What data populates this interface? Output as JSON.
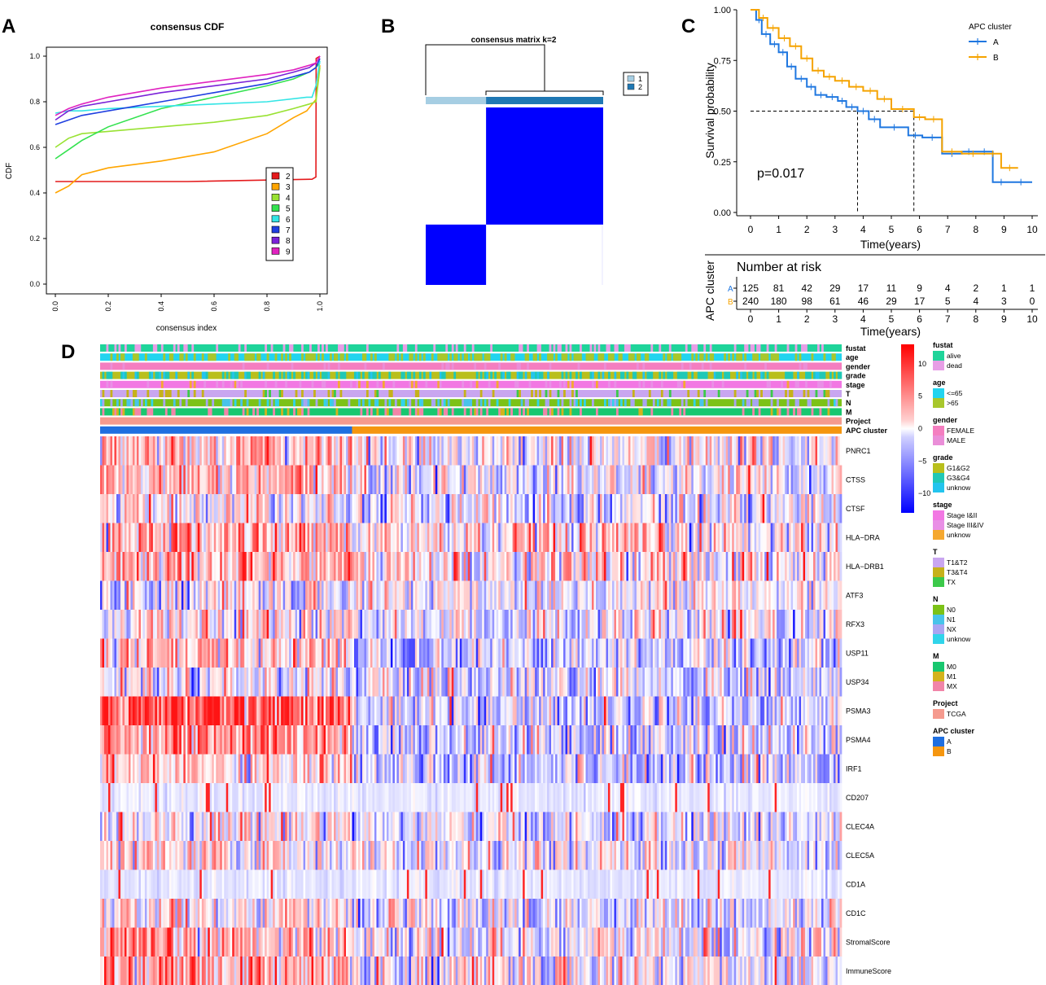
{
  "panel_labels": [
    "A",
    "B",
    "C",
    "D"
  ],
  "colors": {
    "cdf": [
      "#e41a1c",
      "#ffa500",
      "#99e233",
      "#33e24f",
      "#33e5e5",
      "#1f3fe0",
      "#7a22d8",
      "#e022c0"
    ],
    "cluster_light": "#a6cee3",
    "cluster_dark": "#1f78b4",
    "consensus_fill": "#0000ff",
    "km_A": "#1f77e0",
    "km_B": "#f5a300",
    "heat_high": "#ff0000",
    "heat_low": "#0000ff",
    "heat_mid": "#ffffff"
  },
  "chart_data": [
    {
      "id": "A",
      "type": "line",
      "title": "consensus CDF",
      "xlabel": "consensus index",
      "ylabel": "CDF",
      "xlim": [
        0,
        1
      ],
      "ylim": [
        0,
        1
      ],
      "xticks": [
        "0.0",
        "0.2",
        "0.4",
        "0.6",
        "0.8",
        "1.0"
      ],
      "yticks": [
        "0.0",
        "0.2",
        "0.4",
        "0.6",
        "0.8",
        "1.0"
      ],
      "legend": [
        "2",
        "3",
        "4",
        "5",
        "6",
        "7",
        "8",
        "9"
      ],
      "series": [
        {
          "name": "2",
          "x": [
            0.0,
            0.1,
            0.5,
            0.97,
            0.985,
            0.986,
            1.0
          ],
          "y": [
            0.45,
            0.45,
            0.45,
            0.46,
            0.47,
            0.99,
            1.0
          ]
        },
        {
          "name": "3",
          "x": [
            0.0,
            0.05,
            0.1,
            0.2,
            0.4,
            0.6,
            0.8,
            0.9,
            0.95,
            0.985,
            1.0
          ],
          "y": [
            0.4,
            0.43,
            0.48,
            0.51,
            0.54,
            0.58,
            0.66,
            0.73,
            0.76,
            0.81,
            0.96
          ]
        },
        {
          "name": "4",
          "x": [
            0.0,
            0.05,
            0.1,
            0.2,
            0.4,
            0.6,
            0.8,
            0.9,
            0.96,
            0.985,
            1.0
          ],
          "y": [
            0.6,
            0.64,
            0.66,
            0.67,
            0.69,
            0.71,
            0.74,
            0.77,
            0.79,
            0.8,
            0.95
          ]
        },
        {
          "name": "5",
          "x": [
            0.0,
            0.05,
            0.1,
            0.2,
            0.4,
            0.6,
            0.8,
            0.9,
            0.96,
            0.985,
            1.0
          ],
          "y": [
            0.55,
            0.59,
            0.63,
            0.69,
            0.77,
            0.82,
            0.87,
            0.9,
            0.93,
            0.95,
            0.97
          ]
        },
        {
          "name": "6",
          "x": [
            0.0,
            0.05,
            0.1,
            0.2,
            0.4,
            0.6,
            0.8,
            0.95,
            0.97,
            0.985,
            1.0
          ],
          "y": [
            0.75,
            0.76,
            0.76,
            0.77,
            0.78,
            0.79,
            0.8,
            0.82,
            0.82,
            0.87,
            0.98
          ]
        },
        {
          "name": "7",
          "x": [
            0.0,
            0.05,
            0.1,
            0.2,
            0.4,
            0.6,
            0.8,
            0.9,
            0.96,
            0.985,
            1.0
          ],
          "y": [
            0.7,
            0.72,
            0.74,
            0.76,
            0.8,
            0.84,
            0.88,
            0.91,
            0.93,
            0.95,
            0.99
          ]
        },
        {
          "name": "8",
          "x": [
            0.0,
            0.05,
            0.1,
            0.2,
            0.4,
            0.6,
            0.8,
            0.9,
            0.96,
            0.985,
            1.0
          ],
          "y": [
            0.72,
            0.76,
            0.78,
            0.8,
            0.84,
            0.87,
            0.9,
            0.93,
            0.95,
            0.97,
            1.0
          ]
        },
        {
          "name": "9",
          "x": [
            0.0,
            0.05,
            0.1,
            0.2,
            0.4,
            0.6,
            0.8,
            0.9,
            0.96,
            0.985,
            1.0
          ],
          "y": [
            0.74,
            0.77,
            0.79,
            0.82,
            0.86,
            0.89,
            0.92,
            0.94,
            0.96,
            0.97,
            1.0
          ]
        }
      ]
    },
    {
      "id": "B",
      "type": "heatmap",
      "title": "consensus matrix k=2",
      "legend": [
        "1",
        "2"
      ],
      "clusters": [
        {
          "name": "1",
          "fraction": 0.34
        },
        {
          "name": "2",
          "fraction": 0.66
        }
      ]
    },
    {
      "id": "C",
      "type": "line",
      "subtype": "kaplan-meier",
      "xlabel": "Time(years)",
      "ylabel": "Survival probability",
      "xlim": [
        0,
        10
      ],
      "ylim": [
        0,
        1
      ],
      "xticks": [
        "0",
        "1",
        "2",
        "3",
        "4",
        "5",
        "6",
        "7",
        "8",
        "9",
        "10"
      ],
      "yticks": [
        "0.00",
        "0.25",
        "0.50",
        "0.75",
        "1.00"
      ],
      "legend_title": "APC cluster",
      "pvalue": "p=0.017",
      "median_survival": {
        "A": 3.8,
        "B": 5.8
      },
      "series": [
        {
          "name": "A",
          "x": [
            0,
            0.2,
            0.4,
            0.7,
            1.0,
            1.3,
            1.6,
            2.0,
            2.3,
            2.7,
            3.1,
            3.4,
            3.8,
            4.2,
            4.6,
            5.6,
            6.1,
            6.8,
            7.5,
            8.0,
            8.6,
            9.2,
            10.0
          ],
          "y": [
            1.0,
            0.95,
            0.88,
            0.83,
            0.79,
            0.72,
            0.66,
            0.62,
            0.58,
            0.57,
            0.55,
            0.52,
            0.5,
            0.46,
            0.42,
            0.38,
            0.37,
            0.29,
            0.3,
            0.3,
            0.15,
            0.15,
            0.15
          ]
        },
        {
          "name": "B",
          "x": [
            0,
            0.3,
            0.6,
            1.0,
            1.4,
            1.8,
            2.2,
            2.6,
            3.0,
            3.5,
            4.0,
            4.5,
            5.0,
            5.8,
            6.2,
            6.8,
            7.5,
            8.3,
            8.9,
            9.5
          ],
          "y": [
            1.0,
            0.96,
            0.91,
            0.86,
            0.82,
            0.76,
            0.7,
            0.67,
            0.65,
            0.62,
            0.6,
            0.56,
            0.51,
            0.47,
            0.46,
            0.3,
            0.29,
            0.29,
            0.22,
            0.22
          ]
        }
      ],
      "risk_table": {
        "title": "Number at risk",
        "ylabel": "APC cluster",
        "xlabel": "Time(years)",
        "times": [
          "0",
          "1",
          "2",
          "3",
          "4",
          "5",
          "6",
          "7",
          "8",
          "9",
          "10"
        ],
        "rows": [
          {
            "group": "A",
            "counts": [
              "125",
              "81",
              "42",
              "29",
              "17",
              "11",
              "9",
              "4",
              "2",
              "1",
              "1"
            ]
          },
          {
            "group": "B",
            "counts": [
              "240",
              "180",
              "98",
              "61",
              "46",
              "29",
              "17",
              "5",
              "4",
              "3",
              "0"
            ]
          }
        ]
      }
    },
    {
      "id": "D",
      "type": "heatmap",
      "colorbar_ticks": [
        "10",
        "5",
        "0",
        "−5",
        "−10"
      ],
      "colorbar_range": [
        -13,
        13
      ],
      "cluster_split": 0.34,
      "n_samples": 365,
      "annotation_rows": [
        "fustat",
        "age",
        "gender",
        "grade",
        "stage",
        "T",
        "N",
        "M",
        "Project",
        "APC cluster"
      ],
      "genes": [
        {
          "name": "PNRC1",
          "a": 0.8,
          "b": 0.0,
          "noise": 1.0
        },
        {
          "name": "CTSS",
          "a": 0.7,
          "b": -0.2,
          "noise": 1.0
        },
        {
          "name": "CTSF",
          "a": 0.3,
          "b": -0.3,
          "noise": 1.0
        },
        {
          "name": "HLA−DRA",
          "a": 1.0,
          "b": 0.2,
          "noise": 1.1
        },
        {
          "name": "HLA−DRB1",
          "a": 1.0,
          "b": 0.3,
          "noise": 1.1
        },
        {
          "name": "ATF3",
          "a": -0.2,
          "b": 0.0,
          "noise": 1.0
        },
        {
          "name": "RFX3",
          "a": 0.2,
          "b": -0.2,
          "noise": 1.0
        },
        {
          "name": "USP11",
          "a": 0.6,
          "b": -0.5,
          "noise": 1.0
        },
        {
          "name": "USP34",
          "a": 0.0,
          "b": -0.6,
          "noise": 1.0
        },
        {
          "name": "PSMA3",
          "a": 2.2,
          "b": -0.5,
          "noise": 1.0
        },
        {
          "name": "PSMA4",
          "a": 1.4,
          "b": -0.5,
          "noise": 1.0
        },
        {
          "name": "IRF1",
          "a": 0.6,
          "b": -0.5,
          "noise": 1.0
        },
        {
          "name": "CD207",
          "a": -0.3,
          "b": -0.3,
          "noise": 0.2
        },
        {
          "name": "CLEC4A",
          "a": 0.3,
          "b": -0.4,
          "noise": 1.0
        },
        {
          "name": "CLEC5A",
          "a": 0.2,
          "b": -0.2,
          "noise": 0.9
        },
        {
          "name": "CD1A",
          "a": -0.3,
          "b": -0.3,
          "noise": 0.2
        },
        {
          "name": "CD1C",
          "a": 0.3,
          "b": -0.3,
          "noise": 0.9
        },
        {
          "name": "StromalScore",
          "a": 0.9,
          "b": -0.1,
          "noise": 1.1
        },
        {
          "name": "ImmuneScore",
          "a": 1.2,
          "b": 0.0,
          "noise": 1.1
        }
      ]
    }
  ],
  "legend_groups": [
    {
      "title": "fustat",
      "items": [
        {
          "label": "alive",
          "color": "#1fd49a"
        },
        {
          "label": "dead",
          "color": "#e79ee6"
        }
      ]
    },
    {
      "title": "age",
      "items": [
        {
          "label": "<=65",
          "color": "#22d4ef"
        },
        {
          "label": ">65",
          "color": "#a8c72c"
        }
      ]
    },
    {
      "title": "gender",
      "items": [
        {
          "label": "FEMALE",
          "color": "#f47ec0"
        },
        {
          "label": "MALE",
          "color": "#ea8ed8"
        }
      ]
    },
    {
      "title": "grade",
      "items": [
        {
          "label": "G1&G2",
          "color": "#b9bf1c"
        },
        {
          "label": "G3&G4",
          "color": "#20c8b6"
        },
        {
          "label": "unknow",
          "color": "#23c4ee"
        }
      ]
    },
    {
      "title": "stage",
      "items": [
        {
          "label": "Stage I&II",
          "color": "#f277e3"
        },
        {
          "label": "Stage III&IV",
          "color": "#e98fe6"
        },
        {
          "label": "unknow",
          "color": "#f5a830"
        }
      ]
    },
    {
      "title": "T",
      "items": [
        {
          "label": "T1&T2",
          "color": "#c9a6f0"
        },
        {
          "label": "T3&T4",
          "color": "#c6b11a"
        },
        {
          "label": "TX",
          "color": "#3cc94a"
        }
      ]
    },
    {
      "title": "N",
      "items": [
        {
          "label": "N0",
          "color": "#7cc217"
        },
        {
          "label": "N1",
          "color": "#48c3ea"
        },
        {
          "label": "NX",
          "color": "#a9a4f2"
        },
        {
          "label": "unknow",
          "color": "#30d4ea"
        }
      ]
    },
    {
      "title": "M",
      "items": [
        {
          "label": "M0",
          "color": "#18c76f"
        },
        {
          "label": "M1",
          "color": "#d3b31c"
        },
        {
          "label": "MX",
          "color": "#f185a8"
        }
      ]
    },
    {
      "title": "Project",
      "items": [
        {
          "label": "TCGA",
          "color": "#f59a8e"
        }
      ]
    },
    {
      "title": "APC cluster",
      "items": [
        {
          "label": "A",
          "color": "#1f6fe0"
        },
        {
          "label": "B",
          "color": "#f5960f"
        }
      ]
    }
  ]
}
